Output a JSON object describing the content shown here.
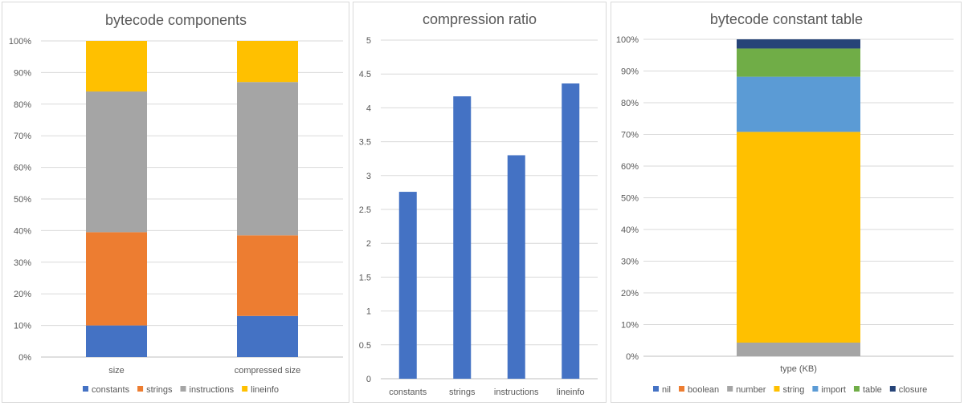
{
  "chart_data": [
    {
      "type": "bar",
      "stacked": "percent",
      "title": "bytecode components",
      "categories": [
        "size",
        "compressed size"
      ],
      "series": [
        {
          "name": "constants",
          "color": "#4472C4",
          "values": [
            10,
            13
          ]
        },
        {
          "name": "strings",
          "color": "#ED7D31",
          "values": [
            29.5,
            25.5
          ]
        },
        {
          "name": "instructions",
          "color": "#A5A5A5",
          "values": [
            44.5,
            48.5
          ]
        },
        {
          "name": "lineinfo",
          "color": "#FFC000",
          "values": [
            16,
            13
          ]
        }
      ],
      "yticks": [
        "0%",
        "10%",
        "20%",
        "30%",
        "40%",
        "50%",
        "60%",
        "70%",
        "80%",
        "90%",
        "100%"
      ],
      "ylim": [
        0,
        100
      ],
      "legend": "bottom",
      "grid": true
    },
    {
      "type": "bar",
      "title": "compression ratio",
      "categories": [
        "constants",
        "strings",
        "instructions",
        "lineinfo"
      ],
      "series": [
        {
          "name": "compression ratio",
          "color": "#4472C4",
          "values": [
            2.76,
            4.17,
            3.3,
            4.36
          ]
        }
      ],
      "yticks": [
        "0",
        "0.5",
        "1",
        "1.5",
        "2",
        "2.5",
        "3",
        "3.5",
        "4",
        "4.5",
        "5"
      ],
      "ylim": [
        0,
        5
      ],
      "grid": true
    },
    {
      "type": "bar",
      "stacked": "percent",
      "title": "bytecode constant table",
      "categories": [
        "type (KB)"
      ],
      "series": [
        {
          "name": "nil",
          "color": "#4472C4",
          "values": [
            0
          ]
        },
        {
          "name": "boolean",
          "color": "#ED7D31",
          "values": [
            0
          ]
        },
        {
          "name": "number",
          "color": "#A5A5A5",
          "values": [
            4.3
          ]
        },
        {
          "name": "string",
          "color": "#FFC000",
          "values": [
            66.5
          ]
        },
        {
          "name": "import",
          "color": "#5B9BD5",
          "values": [
            17.4
          ]
        },
        {
          "name": "table",
          "color": "#70AD47",
          "values": [
            8.9
          ]
        },
        {
          "name": "closure",
          "color": "#264478",
          "values": [
            2.9
          ]
        }
      ],
      "yticks": [
        "0%",
        "10%",
        "20%",
        "30%",
        "40%",
        "50%",
        "60%",
        "70%",
        "80%",
        "90%",
        "100%"
      ],
      "ylim": [
        0,
        100
      ],
      "legend": "bottom",
      "grid": true
    }
  ]
}
